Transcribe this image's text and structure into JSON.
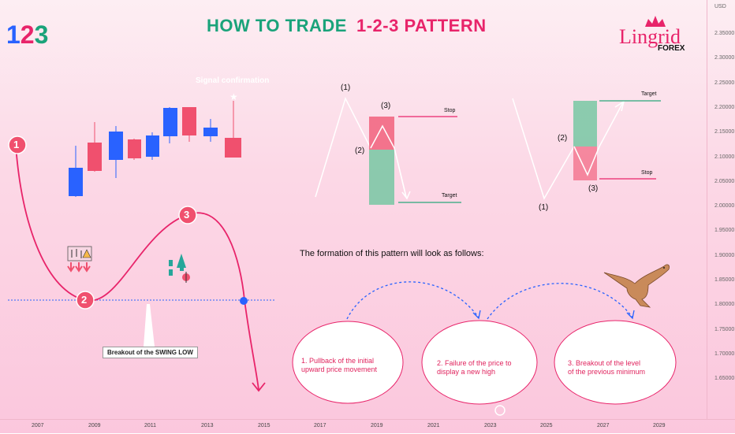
{
  "title_left": "HOW TO TRADE",
  "title_right": "1-2-3 PATTERN",
  "logo_123": "123",
  "brand": {
    "name": "Lingrid",
    "sub": "FOREX"
  },
  "signal_label": "Signal confirmation",
  "breakout_label": "Breakout of the SWING LOW",
  "formation_text": "The formation of this pattern will look as follows:",
  "points": {
    "p1": "1",
    "p2": "2",
    "p3": "3"
  },
  "diagram_left": {
    "p1": "(1)",
    "p2": "(2)",
    "p3": "(3)",
    "stop": "Stop",
    "target": "Target"
  },
  "diagram_right": {
    "p1": "(1)",
    "p2": "(2)",
    "p3": "(3)",
    "stop": "Stop",
    "target": "Target"
  },
  "steps": [
    {
      "line1": "1. Pullback of the initial",
      "line2": "upward price movement"
    },
    {
      "line1": "2. Failure of the price to",
      "line2": "display a new high"
    },
    {
      "line1": "3. Breakout of the level",
      "line2": "of the previous minimum"
    }
  ],
  "price_axis": {
    "currency": "USD",
    "ticks": [
      "2.35000",
      "2.30000",
      "2.25000",
      "2.20000",
      "2.15000",
      "2.10000",
      "2.05000",
      "2.00000",
      "1.95000",
      "1.90000",
      "1.85000",
      "1.80000",
      "1.75000",
      "1.70000",
      "1.65000"
    ]
  },
  "time_axis": {
    "ticks": [
      "2007",
      "2009",
      "2011",
      "2013",
      "2015",
      "2017",
      "2019",
      "2021",
      "2023",
      "2025",
      "2027",
      "2029"
    ]
  },
  "colors": {
    "green_title": "#1aa37a",
    "pink_title": "#e8246a",
    "bull": "#2962ff",
    "bear": "#f0506e",
    "curve": "#e8246a"
  }
}
